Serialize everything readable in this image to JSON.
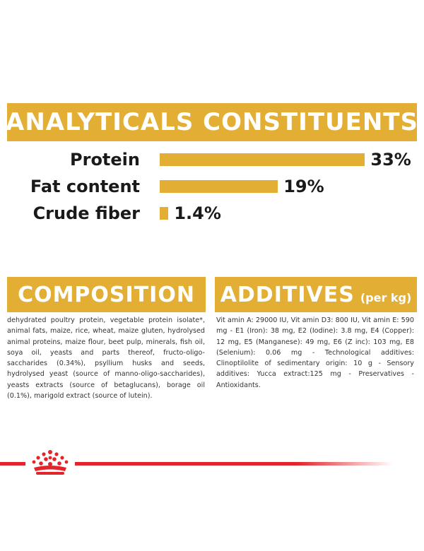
{
  "analyticals": {
    "title": "ANALYTICALS CONSTITUENTS",
    "rows": [
      {
        "label": "Protein",
        "value": 33,
        "value_text": "33%"
      },
      {
        "label": "Fat content",
        "value": 19,
        "value_text": "19%"
      },
      {
        "label": "Crude fiber",
        "value": 1.4,
        "value_text": "1.4%"
      }
    ]
  },
  "composition": {
    "title": "COMPOSITION",
    "text": "dehydrated poultry protein, vegetable protein isolate*, animal fats, maize, rice, wheat, maize gluten, hydrolysed animal proteins, maize flour, beet pulp, minerals, fish oil, soya oil, yeasts and parts thereof, fructo-oligo-saccharides (0.34%), psyllium husks and seeds, hydrolysed yeast (source of manno-oligo-saccharides), yeasts extracts (source of betaglucans), borage oil (0.1%), marigold extract (source of lutein)."
  },
  "additives": {
    "title": "ADDITIVES",
    "subtitle": "(per kg)",
    "text": "Vit amin A: 29000 IU, Vit amin D3: 800 IU, Vit amin E: 590 mg - E1 (Iron): 38 mg, E2 (Iodine): 3.8 mg, E4 (Copper): 12 mg, E5 (Manganese): 49 mg, E6 (Z inc): 103 mg, E8 (Selenium): 0.06 mg - Technological additives: Clinoptilolite of sedimentary origin: 10 g - Sensory additives: Yucca extract:125 mg - Preservatives - Antioxidants."
  },
  "colors": {
    "accent": "#e3ae34",
    "brand_red": "#e1252b"
  },
  "icons": {
    "brand": "crown-icon"
  }
}
